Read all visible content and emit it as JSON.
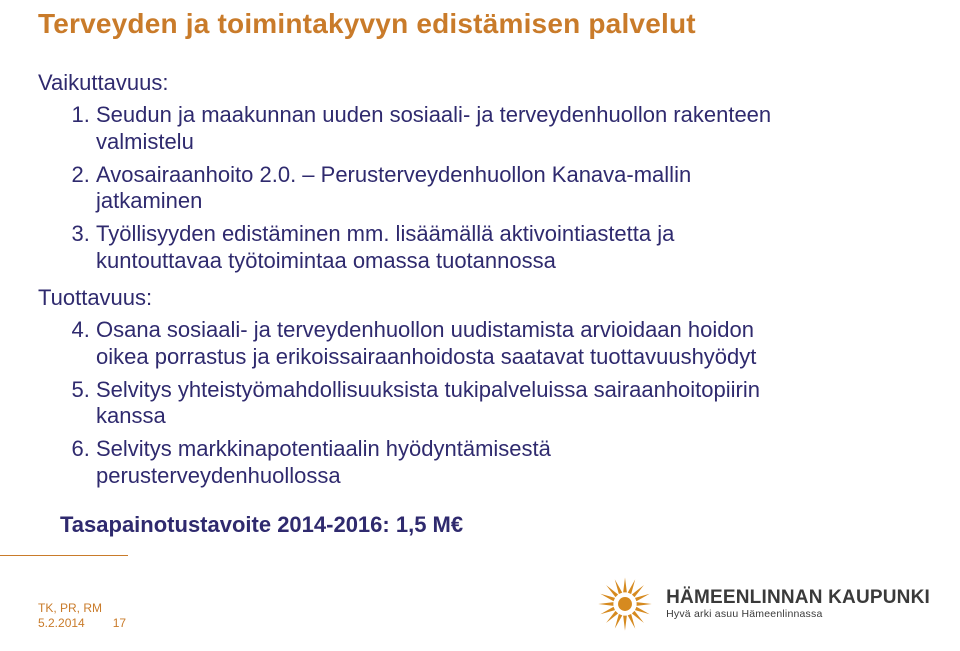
{
  "colors": {
    "accent": "#c97b2a",
    "body": "#2f2a6e",
    "line": "#c97b2a",
    "footer": "#c97b2a",
    "logo": "#d68a1f",
    "logo_text": "#3a3a3a"
  },
  "title": "Terveyden ja toimintakyvyn edistämisen palvelut",
  "sections": {
    "vaikuttavuus": {
      "label": "Vaikuttavuus:",
      "start": 1,
      "items": [
        "Seudun ja maakunnan uuden sosiaali- ja terveydenhuollon rakenteen valmistelu",
        "Avosairaanhoito 2.0. – Perusterveydenhuollon Kanava-mallin jatkaminen",
        "Työllisyyden edistäminen mm. lisäämällä aktivointiastetta ja kuntouttavaa työtoimintaa omassa tuotannossa"
      ]
    },
    "tuottavuus": {
      "label": "Tuottavuus:",
      "start": 4,
      "items": [
        "Osana sosiaali- ja terveydenhuollon uudistamista arvioidaan hoidon oikea porrastus ja erikoissairaanhoidosta saatavat tuottavuushyödyt",
        "Selvitys yhteistyömahdollisuuksista tukipalveluissa sairaanhoitopiirin kanssa",
        "Selvitys markkinapotentiaalin hyödyntämisestä perusterveydenhuollossa"
      ]
    }
  },
  "goal": "Tasapainotustavoite 2014-2016: 1,5 M€",
  "footer": {
    "code": "TK, PR, RM",
    "date": "5.2.2014",
    "page": "17"
  },
  "logo": {
    "name": "HÄMEENLINNAN KAUPUNKI",
    "tagline": "Hyvä arki asuu Hämeenlinnassa"
  }
}
